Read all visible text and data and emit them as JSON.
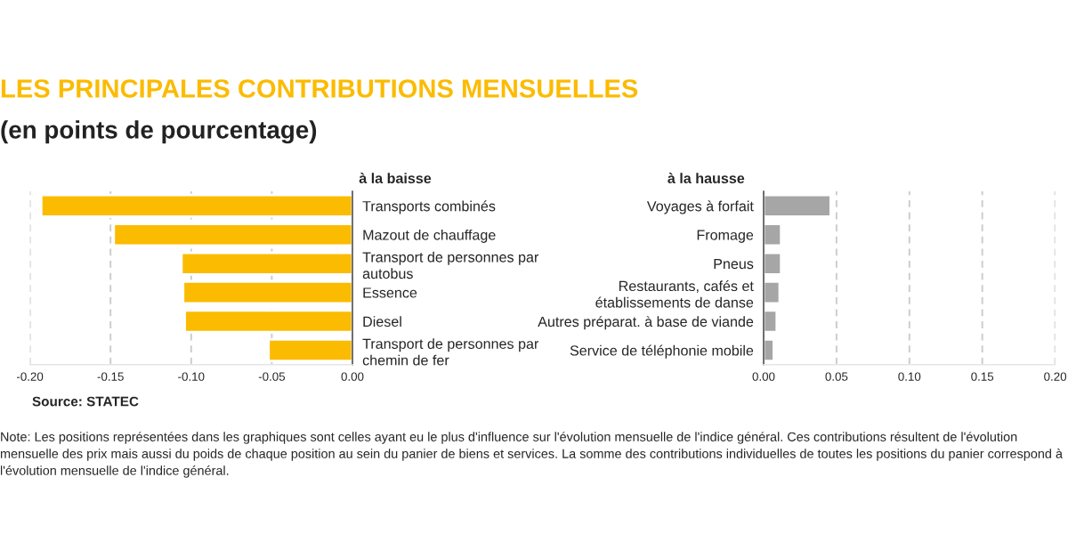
{
  "chart_data": [
    {
      "type": "other",
      "title": "LES PRINCIPALES CONTRIBUTIONS MENSUELLES",
      "subtitle": "(en points de pourcentage)",
      "annotations": [
        "Source: STATEC",
        "Note: Les positions représentées dans les graphiques sont celles ayant eu le plus d'influence sur l'évolution mensuelle de l'indice général. Ces contributions résultent de l'évolution mensuelle des prix mais aussi du poids de chaque position au sein du panier de biens et services. La somme des contributions individuelles de toutes les positions du panier correspond à l'évolution mensuelle de l'indice général."
      ]
    },
    {
      "type": "bar",
      "orientation": "horizontal",
      "title": "à la baisse",
      "categories": [
        "Transports combinés",
        "Mazout de chauffage",
        "Transport de personnes par\nautobus",
        "Essence",
        "Diesel",
        "Transport de personnes par\nchemin de fer"
      ],
      "values": [
        -0.193,
        -0.148,
        -0.106,
        -0.105,
        -0.104,
        -0.052
      ],
      "color": "#fbbb00",
      "xlim": [
        -0.2,
        0
      ],
      "xticks": [
        {
          "value": -0.2,
          "label": "-0.20"
        },
        {
          "value": -0.15,
          "label": "-0.15"
        },
        {
          "value": -0.1,
          "label": "-0.10"
        },
        {
          "value": -0.05,
          "label": "-0.05"
        },
        {
          "value": 0,
          "label": "0.00"
        }
      ],
      "grid": "x"
    },
    {
      "type": "bar",
      "orientation": "horizontal",
      "title": "à la hausse",
      "categories": [
        "Voyages à forfait",
        "Fromage",
        "Pneus",
        "Restaurants, cafés et\nétablissements de danse",
        "Autres préparat. à base de viande",
        "Service de téléphonie mobile"
      ],
      "values": [
        0.046,
        0.012,
        0.012,
        0.011,
        0.009,
        0.007
      ],
      "color": "#a6a6a6",
      "xlim": [
        0,
        0.2
      ],
      "xticks": [
        {
          "value": 0,
          "label": "0.00"
        },
        {
          "value": 0.05,
          "label": "0.05"
        },
        {
          "value": 0.1,
          "label": "0.10"
        },
        {
          "value": 0.15,
          "label": "0.15"
        },
        {
          "value": 0.2,
          "label": "0.20"
        }
      ],
      "grid": "x"
    }
  ]
}
